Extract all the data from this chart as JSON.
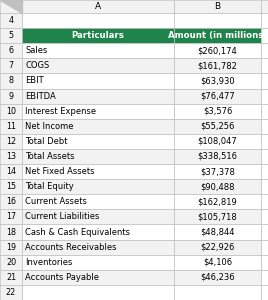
{
  "header": [
    "Particulars",
    "Amount (in millions)"
  ],
  "rows": [
    [
      "Sales",
      "$260,174"
    ],
    [
      "COGS",
      "$161,782"
    ],
    [
      "EBIT",
      "$63,930"
    ],
    [
      "EBITDA",
      "$76,477"
    ],
    [
      "Interest Expense",
      "$3,576"
    ],
    [
      "Net Income",
      "$55,256"
    ],
    [
      "Total Debt",
      "$108,047"
    ],
    [
      "Total Assets",
      "$338,516"
    ],
    [
      "Net Fixed Assets",
      "$37,378"
    ],
    [
      "Total Equity",
      "$90,488"
    ],
    [
      "Current Assets",
      "$162,819"
    ],
    [
      "Current Liabilities",
      "$105,718"
    ],
    [
      "Cash & Cash Equivalents",
      "$48,844"
    ],
    [
      "Accounts Receivables",
      "$22,926"
    ],
    [
      "Inventories",
      "$4,106"
    ],
    [
      "Accounts Payable",
      "$46,236"
    ]
  ],
  "header_bg": "#1E8449",
  "header_text_color": "#FFFFFF",
  "row_bg_even": "#FFFFFF",
  "row_bg_odd": "#F2F2F2",
  "border_color": "#BFBFBF",
  "text_color": "#000000",
  "rownum_bg": "#F2F2F2",
  "collabel_bg": "#F2F2F2",
  "col_letters": [
    "",
    "A",
    "B",
    ""
  ],
  "row_numbers": [
    "4",
    "5",
    "6",
    "7",
    "8",
    "9",
    "10",
    "11",
    "12",
    "13",
    "14",
    "15",
    "16",
    "17",
    "18",
    "19",
    "20",
    "21",
    "22"
  ],
  "fig_bg": "#FFFFFF",
  "fig_width": 2.68,
  "fig_height": 3.0,
  "dpi": 100
}
